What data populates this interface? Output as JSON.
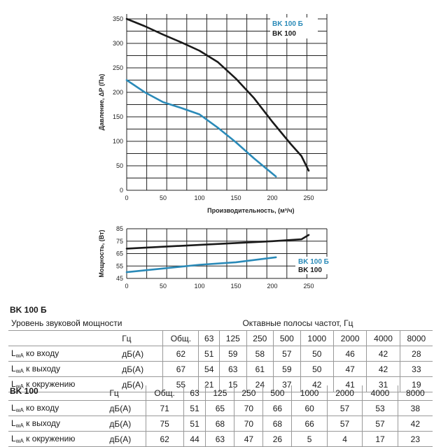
{
  "chart_data": [
    {
      "type": "line",
      "xlabel": "Производительность, (м³/ч)",
      "ylabel": "Давление, ΔP (Па)",
      "xlim": [
        0,
        275
      ],
      "ylim": [
        0,
        360
      ],
      "xticks": [
        0,
        50,
        100,
        150,
        200,
        250
      ],
      "yticks": [
        0,
        50,
        100,
        150,
        200,
        250,
        300,
        350
      ],
      "grid": true,
      "legend_position": "top-right",
      "series": [
        {
          "name": "BK 100 Б",
          "color": "#2a8ab8",
          "x": [
            0,
            25,
            50,
            75,
            100,
            125,
            150,
            175,
            205
          ],
          "y": [
            225,
            200,
            180,
            168,
            155,
            128,
            98,
            65,
            28
          ]
        },
        {
          "name": "BK 100",
          "color": "#1a1a1a",
          "x": [
            0,
            25,
            50,
            75,
            100,
            125,
            150,
            175,
            200,
            225,
            240,
            250
          ],
          "y": [
            350,
            335,
            318,
            302,
            285,
            262,
            228,
            188,
            140,
            95,
            70,
            40
          ]
        }
      ]
    },
    {
      "type": "line",
      "ylabel": "Мощность, (Вт)",
      "xlim": [
        0,
        275
      ],
      "ylim": [
        45,
        85
      ],
      "xticks": [
        0,
        50,
        100,
        150,
        200,
        250
      ],
      "yticks": [
        45,
        55,
        65,
        75,
        85
      ],
      "grid": true,
      "legend_position": "bottom-right",
      "series": [
        {
          "name": "BK 100 Б",
          "color": "#2a8ab8",
          "x": [
            0,
            50,
            100,
            150,
            205
          ],
          "y": [
            50,
            53,
            56,
            58,
            62
          ]
        },
        {
          "name": "BK 100",
          "color": "#1a1a1a",
          "x": [
            0,
            50,
            100,
            150,
            200,
            240,
            250
          ],
          "y": [
            69,
            70.5,
            72,
            73.5,
            75,
            76.5,
            80
          ]
        }
      ]
    }
  ],
  "tables": [
    {
      "title": "BK 100 Б",
      "header_left": "Уровень звуковой мощности",
      "header_right": "Октавные полосы частот, Гц",
      "freq_label": "Гц",
      "freqs": [
        "Общ.",
        "63",
        "125",
        "250",
        "500",
        "1000",
        "2000",
        "4000",
        "8000"
      ],
      "rows": [
        {
          "label": "ко входу",
          "unit": "дБ(А)",
          "values": [
            "62",
            "51",
            "59",
            "58",
            "57",
            "50",
            "46",
            "42",
            "28"
          ]
        },
        {
          "label": "к выходу",
          "unit": "дБ(А)",
          "values": [
            "67",
            "54",
            "63",
            "61",
            "59",
            "50",
            "47",
            "42",
            "33"
          ]
        },
        {
          "label": "к окружению",
          "unit": "дБ(А)",
          "values": [
            "55",
            "21",
            "15",
            "24",
            "37",
            "42",
            "41",
            "31",
            "19"
          ]
        }
      ]
    },
    {
      "title": "BK 100",
      "freq_label": "Гц",
      "freqs": [
        "Общ.",
        "63",
        "125",
        "250",
        "500",
        "1000",
        "2000",
        "4000",
        "8000"
      ],
      "rows": [
        {
          "label": "ко входу",
          "unit": "дБ(А)",
          "values": [
            "71",
            "51",
            "65",
            "70",
            "66",
            "60",
            "57",
            "53",
            "38"
          ]
        },
        {
          "label": "к выходу",
          "unit": "дБ(А)",
          "values": [
            "75",
            "51",
            "68",
            "70",
            "68",
            "66",
            "57",
            "57",
            "42"
          ]
        },
        {
          "label": "к окружению",
          "unit": "дБ(А)",
          "values": [
            "62",
            "44",
            "63",
            "47",
            "26",
            "5",
            "4",
            "17",
            "23"
          ]
        }
      ]
    }
  ],
  "lwa_prefix": "L",
  "lwa_sub": "wA"
}
